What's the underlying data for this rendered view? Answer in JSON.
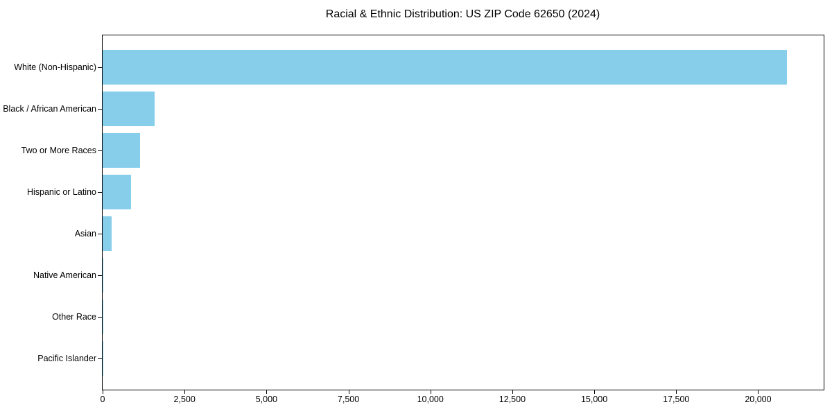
{
  "chart_data": {
    "type": "bar",
    "orientation": "horizontal",
    "title": "Racial & Ethnic Distribution: US ZIP Code 62650 (2024)",
    "categories": [
      "White (Non-Hispanic)",
      "Black / African American",
      "Two or More Races",
      "Hispanic or Latino",
      "Asian",
      "Native American",
      "Other Race",
      "Pacific Islander"
    ],
    "values": [
      20880,
      1580,
      1150,
      860,
      280,
      30,
      20,
      5
    ],
    "xlabel": "",
    "ylabel": "",
    "xlim": [
      0,
      22000
    ],
    "xticks": {
      "values": [
        0,
        2500,
        5000,
        7500,
        10000,
        12500,
        15000,
        17500,
        20000
      ],
      "labels": [
        "0",
        "2,500",
        "5,000",
        "7,500",
        "10,000",
        "12,500",
        "15,000",
        "17,500",
        "20,000"
      ]
    },
    "grid": false,
    "legend": null,
    "bar_color": "#87CEEB",
    "axis_color": "#000000",
    "text_color": "#000000"
  }
}
